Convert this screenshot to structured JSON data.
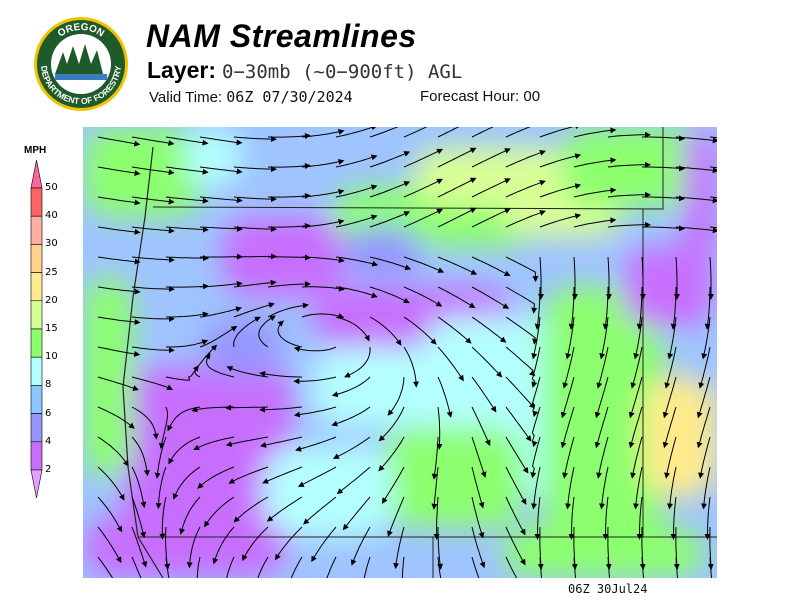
{
  "header": {
    "title": "NAM Streamlines",
    "layer_label": "Layer:",
    "layer_value": "0−30mb (~0−900ft) AGL",
    "valid_label": "Valid Time:",
    "valid_value": "06Z 07/30/2024",
    "forecast_hour_label": "Forecast Hour:",
    "forecast_hour_value": "00"
  },
  "logo": {
    "text_top": "OREGON",
    "text_bottom": "DEPARTMENT OF FORESTRY"
  },
  "legend": {
    "unit": "MPH",
    "ticks": [
      "50",
      "40",
      "30",
      "25",
      "20",
      "15",
      "10",
      "8",
      "6",
      "4",
      "2"
    ],
    "colors": [
      "#ff64a0",
      "#ff6464",
      "#ffb0a0",
      "#ffd28c",
      "#ffeb8c",
      "#d8ff96",
      "#8cff6e",
      "#b4ffff",
      "#8cc8ff",
      "#9696ff",
      "#c86eff",
      "#e6a0ff"
    ]
  },
  "footer": {
    "timestamp": "06Z  30Jul24"
  }
}
